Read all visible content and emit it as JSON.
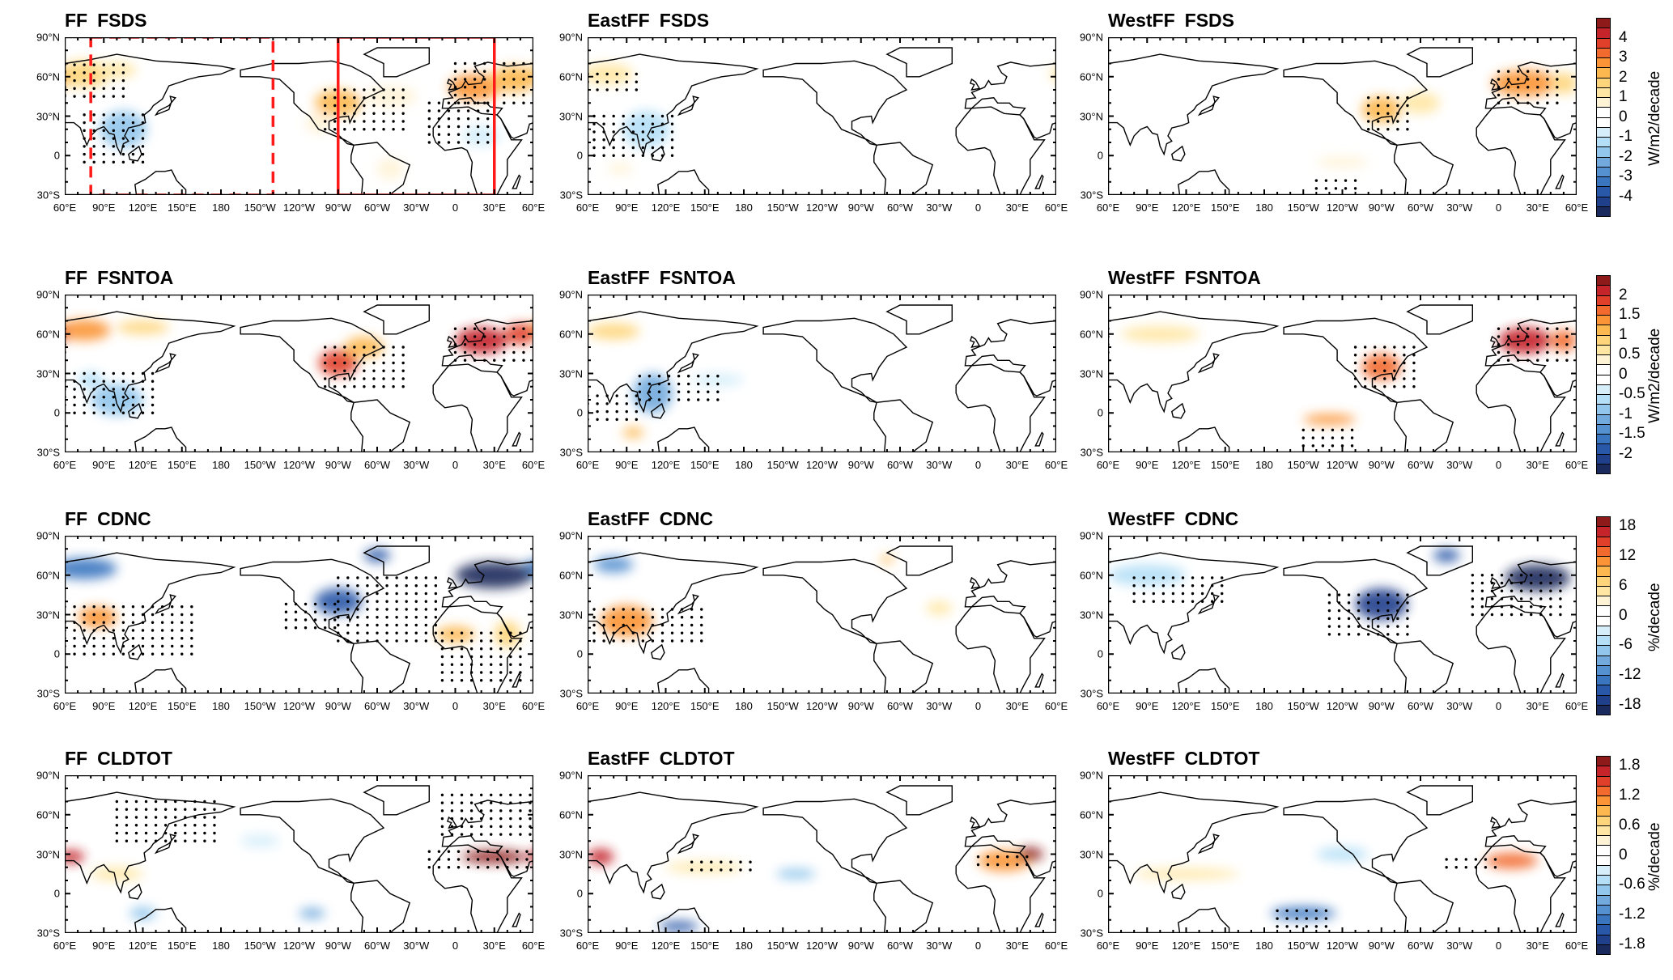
{
  "lon_ticks": [
    "60°E",
    "90°E",
    "120°E",
    "150°E",
    "180",
    "150°W",
    "120°W",
    "90°W",
    "60°W",
    "30°W",
    "0",
    "30°E",
    "60°E"
  ],
  "lat_ticks": [
    "90°N",
    "60°N",
    "30°N",
    "0",
    "30°S"
  ],
  "palette": [
    "#1b2a5c",
    "#21408c",
    "#2a58a8",
    "#3a76c0",
    "#5590d0",
    "#72aadd",
    "#92c6ec",
    "#b4dff6",
    "#d6eefa",
    "#ffffff",
    "#ffffff",
    "#fff3d6",
    "#ffe6a3",
    "#fed57a",
    "#fdb84f",
    "#fb9436",
    "#f26a2e",
    "#e03f2a",
    "#c4242a",
    "#8f1a1a"
  ],
  "box_color": "#ff1a1a",
  "rows": [
    {
      "variable": "FSDS",
      "unit": "W/m2/decade",
      "step": 0.5,
      "labels": [
        "4",
        "3",
        "2",
        "1",
        "0",
        "-1",
        "-2",
        "-3",
        "-4"
      ],
      "panels": [
        {
          "experiment": "FF",
          "boxes": true,
          "blobs": [
            [
              75,
              62,
              20,
              10,
              1.8
            ],
            [
              100,
              65,
              15,
              6,
              1
            ],
            [
              105,
              20,
              18,
              14,
              -1.8
            ],
            [
              -90,
              40,
              18,
              10,
              2.2
            ],
            [
              -105,
              25,
              10,
              8,
              0.8
            ],
            [
              -50,
              45,
              20,
              8,
              0.9
            ],
            [
              15,
              52,
              20,
              10,
              2.6
            ],
            [
              45,
              58,
              18,
              10,
              2
            ],
            [
              20,
              15,
              15,
              8,
              -0.8
            ],
            [
              -50,
              -10,
              10,
              8,
              0.7
            ]
          ],
          "stipple": [
            [
              60,
              110,
              45,
              70
            ],
            [
              75,
              125,
              -5,
              35
            ],
            [
              -100,
              -40,
              20,
              55
            ],
            [
              -20,
              30,
              10,
              45
            ],
            [
              0,
              60,
              40,
              70
            ]
          ]
        },
        {
          "experiment": "EastFF",
          "blobs": [
            [
              75,
              62,
              20,
              8,
              1.2
            ],
            [
              105,
              20,
              18,
              14,
              -1.5
            ],
            [
              85,
              -10,
              10,
              4,
              0.6
            ]
          ],
          "stipple": [
            [
              65,
              130,
              0,
              30
            ],
            [
              60,
              100,
              50,
              65
            ]
          ]
        },
        {
          "experiment": "WestFF",
          "blobs": [
            [
              -90,
              35,
              15,
              10,
              2
            ],
            [
              -60,
              40,
              15,
              8,
              1
            ],
            [
              20,
              55,
              25,
              10,
              2.6
            ],
            [
              50,
              55,
              10,
              8,
              1.5
            ],
            [
              -120,
              -5,
              20,
              4,
              0.8
            ]
          ],
          "stipple": [
            [
              -100,
              -70,
              20,
              45
            ],
            [
              0,
              50,
              40,
              65
            ],
            [
              -140,
              -110,
              -25,
              -15
            ]
          ]
        }
      ]
    },
    {
      "variable": "FSNTOA",
      "unit": "W/m2/decade",
      "step": 0.25,
      "labels": [
        "2",
        "1.5",
        "1",
        "0.5",
        "0",
        "-0.5",
        "-1",
        "-1.5",
        "-2"
      ],
      "panels": [
        {
          "experiment": "FF",
          "blobs": [
            [
              75,
              63,
              20,
              8,
              1.4
            ],
            [
              120,
              65,
              20,
              5,
              0.9
            ],
            [
              -90,
              38,
              15,
              10,
              1.8
            ],
            [
              -70,
              50,
              15,
              8,
              1
            ],
            [
              20,
              55,
              20,
              10,
              2
            ],
            [
              50,
              60,
              12,
              8,
              1.8
            ],
            [
              100,
              10,
              20,
              12,
              -1
            ],
            [
              80,
              25,
              10,
              6,
              -0.7
            ]
          ],
          "stipple": [
            [
              60,
              130,
              0,
              30
            ],
            [
              -100,
              -40,
              20,
              50
            ],
            [
              0,
              60,
              40,
              65
            ]
          ]
        },
        {
          "experiment": "EastFF",
          "blobs": [
            [
              80,
              62,
              20,
              6,
              0.8
            ],
            [
              110,
              15,
              15,
              15,
              -1.2
            ],
            [
              95,
              -15,
              8,
              4,
              1
            ],
            [
              160,
              25,
              20,
              5,
              -0.5
            ]
          ],
          "stipple": [
            [
              100,
              160,
              10,
              30
            ],
            [
              60,
              100,
              -5,
              15
            ]
          ]
        },
        {
          "experiment": "WestFF",
          "blobs": [
            [
              -90,
              35,
              15,
              10,
              1.7
            ],
            [
              20,
              55,
              20,
              10,
              2
            ],
            [
              50,
              55,
              10,
              8,
              1.7
            ],
            [
              -130,
              -5,
              20,
              4,
              1.3
            ],
            [
              100,
              60,
              30,
              6,
              0.6
            ]
          ],
          "stipple": [
            [
              -110,
              -60,
              20,
              50
            ],
            [
              0,
              60,
              40,
              65
            ],
            [
              -150,
              -110,
              -25,
              -10
            ]
          ]
        }
      ]
    },
    {
      "variable": "CDNC",
      "unit": "%/decade",
      "step": 2,
      "labels": [
        "18",
        "12",
        "6",
        "0",
        "-6",
        "-12",
        "-18"
      ],
      "panels": [
        {
          "experiment": "FF",
          "blobs": [
            [
              75,
              65,
              25,
              8,
              -14
            ],
            [
              -90,
              40,
              18,
              10,
              -16
            ],
            [
              30,
              60,
              30,
              10,
              -22
            ],
            [
              -60,
              75,
              10,
              5,
              -16
            ],
            [
              85,
              28,
              15,
              8,
              10
            ],
            [
              0,
              15,
              15,
              6,
              9
            ],
            [
              40,
              15,
              10,
              10,
              7
            ]
          ],
          "stipple": [
            [
              60,
              160,
              0,
              40
            ],
            [
              -130,
              -90,
              20,
              40
            ],
            [
              -90,
              -10,
              10,
              60
            ],
            [
              -10,
              50,
              -20,
              20
            ]
          ]
        },
        {
          "experiment": "EastFF",
          "blobs": [
            [
              80,
              68,
              15,
              6,
              -12
            ],
            [
              90,
              25,
              20,
              12,
              10
            ],
            [
              -70,
              72,
              5,
              3,
              8
            ],
            [
              -30,
              35,
              10,
              5,
              4
            ]
          ],
          "stipple": [
            [
              65,
              150,
              10,
              35
            ]
          ]
        },
        {
          "experiment": "WestFF",
          "blobs": [
            [
              -90,
              38,
              20,
              12,
              -18
            ],
            [
              30,
              58,
              25,
              10,
              -24
            ],
            [
              -40,
              75,
              10,
              5,
              -16
            ],
            [
              90,
              60,
              30,
              8,
              -6
            ]
          ],
          "stipple": [
            [
              -130,
              -70,
              15,
              50
            ],
            [
              -20,
              50,
              30,
              65
            ],
            [
              80,
              150,
              40,
              60
            ]
          ]
        }
      ]
    },
    {
      "variable": "CLDTOT",
      "unit": "%/decade",
      "step": 0.2,
      "labels": [
        "1.8",
        "1.2",
        "0.6",
        "0",
        "-0.6",
        "-1.2",
        "-1.8"
      ],
      "panels": [
        {
          "experiment": "FF",
          "blobs": [
            [
              65,
              28,
              10,
              5,
              1.6
            ],
            [
              30,
              28,
              25,
              5,
              1.8
            ],
            [
              100,
              15,
              20,
              5,
              0.6
            ],
            [
              -110,
              -15,
              10,
              4,
              -1
            ],
            [
              120,
              -15,
              10,
              5,
              -0.8
            ],
            [
              -150,
              40,
              15,
              5,
              -0.4
            ]
          ],
          "stipple": [
            [
              100,
              180,
              40,
              75
            ],
            [
              -20,
              60,
              20,
              35
            ],
            [
              -10,
              60,
              45,
              75
            ]
          ]
        },
        {
          "experiment": "EastFF",
          "blobs": [
            [
              70,
              28,
              10,
              6,
              1.6
            ],
            [
              20,
              25,
              20,
              8,
              1
            ],
            [
              40,
              30,
              10,
              5,
              1.8
            ],
            [
              130,
              -25,
              15,
              4,
              -1.6
            ],
            [
              -140,
              15,
              15,
              4,
              -0.8
            ],
            [
              150,
              20,
              30,
              4,
              0.6
            ]
          ],
          "stipple": [
            [
              140,
              190,
              18,
              25
            ],
            [
              0,
              40,
              22,
              32
            ]
          ]
        },
        {
          "experiment": "WestFF",
          "blobs": [
            [
              10,
              25,
              20,
              6,
              1.4
            ],
            [
              -150,
              -15,
              25,
              5,
              -1.4
            ],
            [
              -120,
              30,
              20,
              5,
              -0.5
            ],
            [
              120,
              15,
              40,
              4,
              0.5
            ]
          ],
          "stipple": [
            [
              -170,
              -130,
              -25,
              -10
            ],
            [
              -40,
              0,
              20,
              30
            ]
          ]
        }
      ]
    }
  ]
}
